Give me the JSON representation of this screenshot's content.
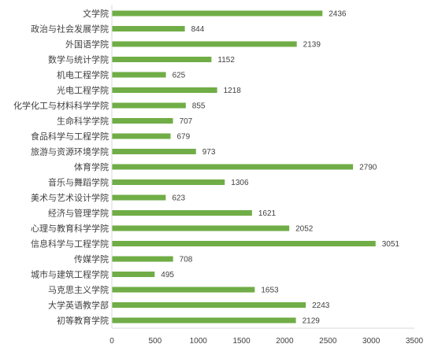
{
  "chart_data": {
    "type": "bar",
    "orientation": "horizontal",
    "categories": [
      "文学院",
      "政治与社会发展学院",
      "外国语学院",
      "数学与统计学院",
      "机电工程学院",
      "光电工程学院",
      "化学化工与材料科学学院",
      "生命科学学院",
      "食品科学与工程学院",
      "旅游与资源环境学院",
      "体育学院",
      "音乐与舞蹈学院",
      "美术与艺术设计学院",
      "经济与管理学院",
      "心理与教育科学学院",
      "信息科学与工程学院",
      "传媒学院",
      "城市与建筑工程学院",
      "马克思主义学院",
      "大学英语教学部",
      "初等教育学院"
    ],
    "values": [
      2436,
      844,
      2139,
      1152,
      625,
      1218,
      855,
      707,
      679,
      973,
      2790,
      1306,
      623,
      1621,
      2052,
      3051,
      708,
      495,
      1653,
      2243,
      2129
    ],
    "value_labels": [
      "2436",
      "844",
      "2139",
      "1152",
      "625",
      "1218",
      "855",
      "707",
      "679",
      "973",
      "2790",
      "1306",
      "623",
      "1621",
      "2052",
      "3051",
      "708",
      "495",
      "1653",
      "2243",
      "2129"
    ],
    "xlim": [
      0,
      3500
    ],
    "x_ticks": [
      "0",
      "500",
      "1000",
      "1500",
      "2000",
      "2500",
      "3000",
      "3500"
    ],
    "grid": false,
    "legend": "none",
    "title": "",
    "xlabel": "",
    "ylabel": "",
    "bar_color": "#70ad47",
    "axis_color": "#d9d9d9",
    "text_color": "#404040"
  }
}
